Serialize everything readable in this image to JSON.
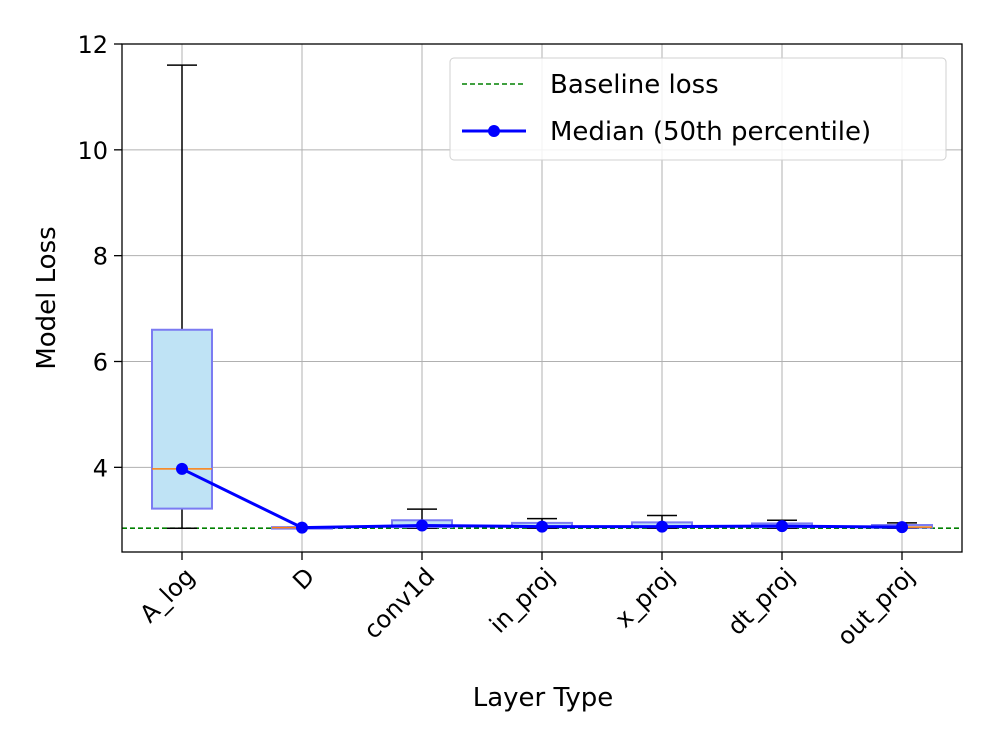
{
  "chart_data": {
    "type": "box",
    "categories": [
      "A_log",
      "D",
      "conv1d",
      "in_proj",
      "x_proj",
      "dt_proj",
      "out_proj"
    ],
    "boxes": [
      {
        "category": "A_log",
        "whisker_low": 2.85,
        "q1": 3.22,
        "median": 3.97,
        "q3": 6.6,
        "whisker_high": 11.6
      },
      {
        "category": "D",
        "whisker_low": 2.85,
        "q1": 2.85,
        "median": 2.86,
        "q3": 2.87,
        "whisker_high": 2.87
      },
      {
        "category": "conv1d",
        "whisker_low": 2.85,
        "q1": 2.87,
        "median": 2.9,
        "q3": 3.0,
        "whisker_high": 3.21
      },
      {
        "category": "in_proj",
        "whisker_low": 2.85,
        "q1": 2.87,
        "median": 2.88,
        "q3": 2.95,
        "whisker_high": 3.03
      },
      {
        "category": "x_proj",
        "whisker_low": 2.85,
        "q1": 2.87,
        "median": 2.88,
        "q3": 2.96,
        "whisker_high": 3.09
      },
      {
        "category": "dt_proj",
        "whisker_low": 2.85,
        "q1": 2.87,
        "median": 2.89,
        "q3": 2.94,
        "whisker_high": 3.0
      },
      {
        "category": "out_proj",
        "whisker_low": 2.85,
        "q1": 2.86,
        "median": 2.87,
        "q3": 2.91,
        "whisker_high": 2.95
      }
    ],
    "series": [
      {
        "name": "Baseline loss",
        "type": "hline",
        "value": 2.85,
        "color": "#008000",
        "style": "dashed"
      },
      {
        "name": "Median (50th percentile)",
        "type": "line",
        "values": [
          3.97,
          2.86,
          2.9,
          2.88,
          2.88,
          2.89,
          2.87
        ],
        "color": "#0000ff",
        "marker": "circle"
      }
    ],
    "xlabel": "Layer Type",
    "ylabel": "Model Loss",
    "ylim": [
      2.4,
      12.0
    ],
    "yticks": [
      4,
      6,
      8,
      10,
      12
    ],
    "grid": true,
    "legend_position": "top-right",
    "colors": {
      "box_fill": "#bfe3f5",
      "box_edge": "#7b7bf2",
      "median_tick": "#ff7f0e",
      "whisker": "#000000",
      "grid": "#b0b0b0"
    }
  }
}
